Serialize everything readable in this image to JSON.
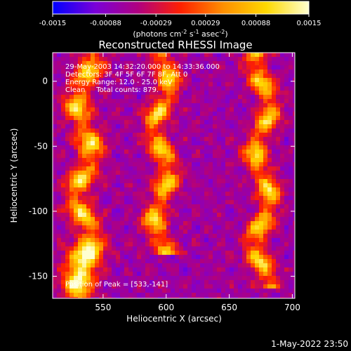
{
  "chart_data": {
    "type": "heatmap",
    "title": "Reconstructed RHESSI Image",
    "xlabel": "Heliocentric X (arcsec)",
    "ylabel": "Heliocentric Y (arcsec)",
    "xlim": [
      510,
      702
    ],
    "ylim": [
      -167,
      22
    ],
    "xticks": [
      550,
      600,
      650,
      700
    ],
    "yticks": [
      0,
      -50,
      -100,
      -150
    ],
    "colorbar": {
      "min": -0.0015,
      "max": 0.0015,
      "tick_labels": [
        "-0.0015",
        "-0.00088",
        "-0.00029",
        "0.00029",
        "0.00088",
        "0.0015"
      ],
      "label_base": "(photons cm",
      "label_exp1": "-2",
      "label_mid": " s",
      "label_exp2": "-1",
      "label_mid2": " asec",
      "label_exp3": "-2",
      "label_end": ")",
      "colors": [
        "#0000ff",
        "#7a00d8",
        "#b00080",
        "#ff2000",
        "#ff9000",
        "#ffd800",
        "#ffffd0"
      ]
    },
    "annotations": [
      "29-May-2003 14:32:20.000 to 14:33:36.000",
      "Detectors: 3F 4F 5F 6F 7F 8F, Att 0",
      "Energy Range: 12.0 - 25.0 keV",
      "Clean     Total counts: 879."
    ],
    "peak_label": "Position of Peak = [533,-141]",
    "peak": [
      533,
      -141
    ],
    "ridges": [
      {
        "x0": 525,
        "x1": 545,
        "y0": -165,
        "y1": 18
      },
      {
        "x0": 588,
        "x1": 605,
        "y0": -125,
        "y1": 18
      },
      {
        "x0": 668,
        "x1": 685,
        "y0": -150,
        "y1": 18
      }
    ]
  },
  "footer": {
    "timestamp": "1-May-2022 23:50"
  }
}
